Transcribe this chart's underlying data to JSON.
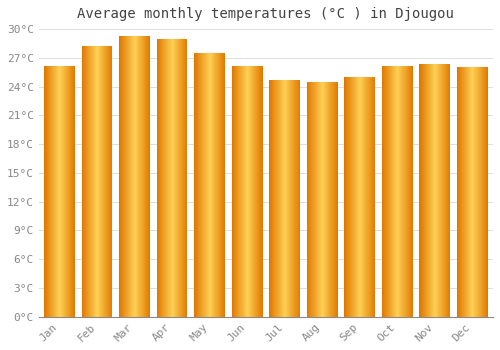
{
  "categories": [
    "Jan",
    "Feb",
    "Mar",
    "Apr",
    "May",
    "Jun",
    "Jul",
    "Aug",
    "Sep",
    "Oct",
    "Nov",
    "Dec"
  ],
  "values": [
    26.2,
    28.2,
    29.3,
    29.0,
    27.5,
    26.2,
    24.7,
    24.5,
    25.0,
    26.2,
    26.4,
    26.0
  ],
  "bar_color_left": "#E07800",
  "bar_color_center": "#FFD055",
  "bar_color_right": "#E07800",
  "title": "Average monthly temperatures (°C ) in Djougou",
  "ylim": [
    0,
    30
  ],
  "ytick_step": 3,
  "background_color": "#FFFFFF",
  "plot_bg_color": "#FFFFFF",
  "grid_color": "#DDDDDD",
  "title_fontsize": 10,
  "tick_fontsize": 8,
  "tick_color": "#888888",
  "title_color": "#444444",
  "title_font_family": "monospace",
  "bar_width": 0.82
}
